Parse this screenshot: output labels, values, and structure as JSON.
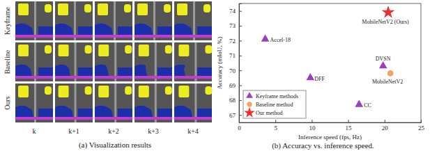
{
  "panel_a": {
    "caption": "(a) Visualization results",
    "row_labels": [
      "Keyframe",
      "Baseline",
      "Ours"
    ],
    "column_labels": [
      "k",
      "k+1",
      "k+2",
      "k+3",
      "k+4"
    ]
  },
  "chart_data": {
    "type": "scatter",
    "title": "(b) Accuracy vs. inference speed.",
    "x_label": "Inference speed (fps, Hz)",
    "y_label": "Accuracy (mIoU, %)",
    "xlim": [
      0,
      25
    ],
    "xticks": [
      0,
      5,
      10,
      15,
      20,
      25
    ],
    "ylim": [
      66.5,
      74.5
    ],
    "yticks": [
      67,
      68,
      69,
      70,
      71,
      72,
      73,
      74
    ],
    "grid": false,
    "legend": "lower left",
    "series": [
      {
        "name": "Keyframe methods",
        "color": "#9b3fc0",
        "marker": "triangle",
        "x": [
          3.6,
          9.8,
          19.8,
          16.5
        ],
        "values": [
          72.1,
          69.5,
          70.3,
          67.7
        ],
        "labels": [
          "Accel-18",
          "DFF",
          "DVSN",
          "CC"
        ]
      },
      {
        "name": "Baseline method",
        "color": "#f4a261",
        "marker": "circle",
        "x": [
          20.8
        ],
        "values": [
          69.8
        ],
        "labels": [
          "MobileNetV2"
        ]
      },
      {
        "name": "Our method",
        "color": "#e8312f",
        "marker": "star",
        "x": [
          20.5
        ],
        "values": [
          73.9
        ],
        "labels": [
          "MobileNetV2 (Ours)"
        ]
      }
    ]
  }
}
